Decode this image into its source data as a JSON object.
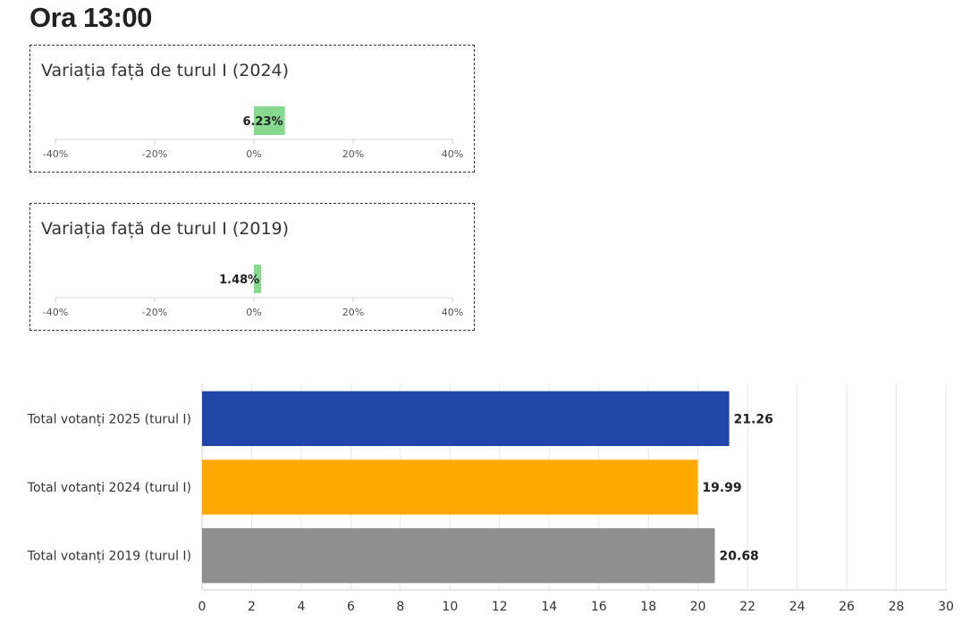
{
  "page": {
    "title": "Ora 13:00"
  },
  "chart_data": [
    {
      "type": "bar",
      "orientation": "horizontal",
      "title": "Variația față de turul I (2024)",
      "categories": [
        ""
      ],
      "values": [
        6.23
      ],
      "data_labels": [
        "6.23%"
      ],
      "xlim": [
        -40,
        40
      ],
      "xticks": [
        -40,
        -20,
        0,
        20,
        40
      ],
      "xtick_labels": [
        "-40%",
        "-20%",
        "0%",
        "20%",
        "40%"
      ],
      "bar_color": "#86d98f"
    },
    {
      "type": "bar",
      "orientation": "horizontal",
      "title": "Variația față de turul I (2019)",
      "categories": [
        ""
      ],
      "values": [
        1.48
      ],
      "data_labels": [
        "1.48%"
      ],
      "xlim": [
        -40,
        40
      ],
      "xticks": [
        -40,
        -20,
        0,
        20,
        40
      ],
      "xtick_labels": [
        "-40%",
        "-20%",
        "0%",
        "20%",
        "40%"
      ],
      "bar_color": "#86d98f"
    },
    {
      "type": "bar",
      "orientation": "horizontal",
      "categories": [
        "Total votanți 2025 (turul I)",
        "Total votanți 2024 (turul I)",
        "Total votanți 2019 (turul I)"
      ],
      "values": [
        21.26,
        19.99,
        20.68
      ],
      "data_labels": [
        "21.26",
        "19.99",
        "20.68"
      ],
      "colors": [
        "#2145a8",
        "#ffa800",
        "#8f8f8f"
      ],
      "xlim": [
        0,
        30
      ],
      "xticks": [
        0,
        2,
        4,
        6,
        8,
        10,
        12,
        14,
        16,
        18,
        20,
        22,
        24,
        26,
        28,
        30
      ],
      "grid": true
    }
  ]
}
